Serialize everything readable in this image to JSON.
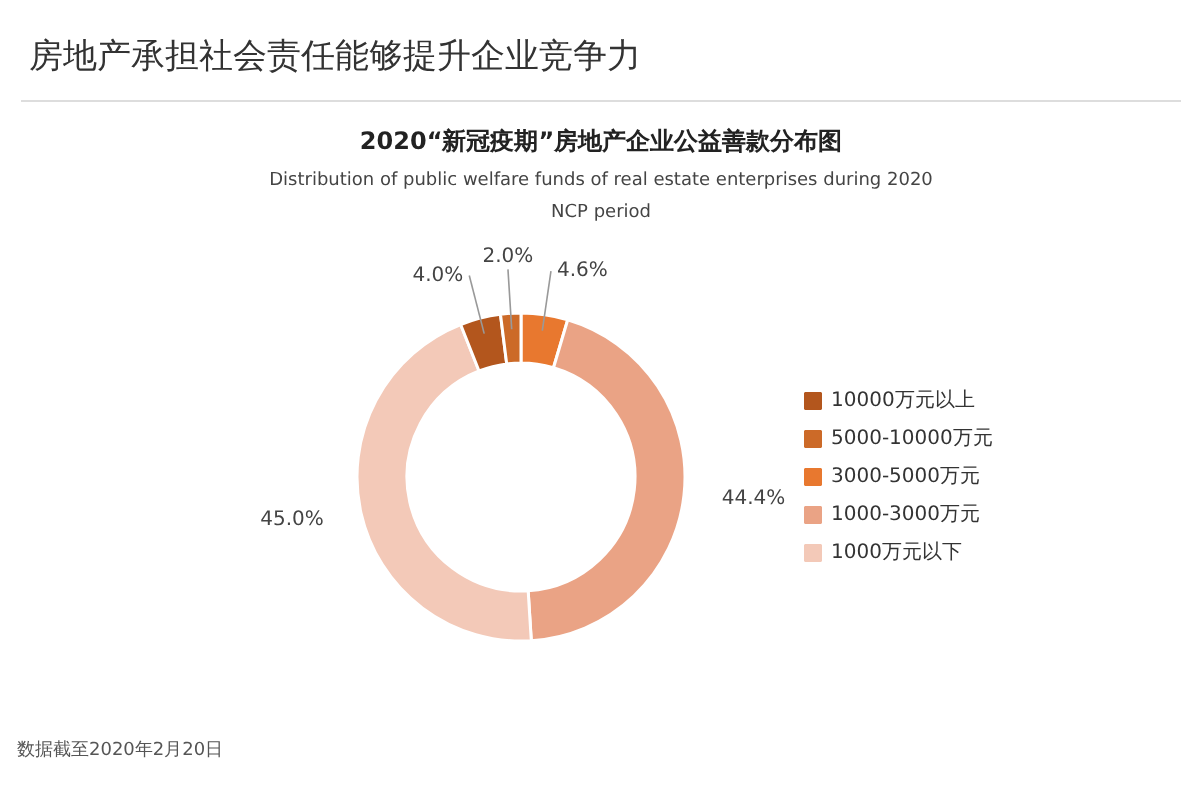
{
  "chart_data": {
    "type": "donut",
    "title": "房地产承担社会责任能够提升企业竞争力",
    "subtitle": "2020“新冠疫期”房地产企业公益善款分布图",
    "annotations": [
      "Distribution of public welfare funds of real estate enterprises during 2020 NCP period",
      "数据截至2020年2月20日"
    ],
    "categories": [
      "10000万元以上",
      "5000-10000万元",
      "3000-5000万元",
      "1000-3000万元",
      "1000万元以下"
    ],
    "values": [
      4.0,
      2.0,
      4.6,
      44.4,
      45.0
    ],
    "colors": [
      "#b3561d",
      "#cc6a28",
      "#e8782f",
      "#eaa385",
      "#f3c9b8"
    ],
    "value_labels": [
      "4.0%",
      "2.0%",
      "4.6%",
      "44.4%",
      "45.0%"
    ],
    "legend": "right"
  }
}
